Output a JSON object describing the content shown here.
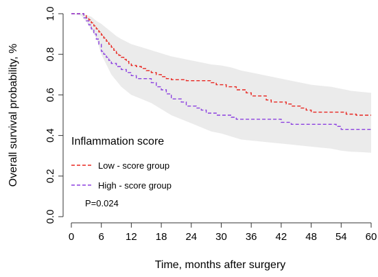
{
  "chart_data": {
    "type": "line",
    "title": "",
    "xlabel": "Time, months after surgery",
    "ylabel": "Overall survival probability, %",
    "xlim": [
      0,
      60
    ],
    "ylim": [
      0,
      1
    ],
    "x_ticks": [
      "0",
      "6",
      "12",
      "18",
      "24",
      "30",
      "36",
      "42",
      "48",
      "54",
      "60"
    ],
    "y_ticks": [
      "0.0",
      "0.2",
      "0.4",
      "0.6",
      "0.8",
      "1.0"
    ],
    "legend": {
      "title": "Inflammation score",
      "placement": "bottom-left"
    },
    "annotation": "P=0.024",
    "grid": false,
    "series": [
      {
        "name": "Low - score group",
        "color": "#e8251f",
        "dash": "dashed",
        "step": true,
        "points": [
          [
            0,
            1.0
          ],
          [
            2,
            1.0
          ],
          [
            2.5,
            0.99
          ],
          [
            3,
            0.98
          ],
          [
            3.5,
            0.97
          ],
          [
            4,
            0.955
          ],
          [
            4.5,
            0.94
          ],
          [
            5,
            0.925
          ],
          [
            5.5,
            0.91
          ],
          [
            6,
            0.895
          ],
          [
            6.5,
            0.88
          ],
          [
            7,
            0.865
          ],
          [
            7.5,
            0.85
          ],
          [
            8,
            0.835
          ],
          [
            8.5,
            0.82
          ],
          [
            9,
            0.805
          ],
          [
            9.5,
            0.795
          ],
          [
            10,
            0.785
          ],
          [
            10.5,
            0.775
          ],
          [
            11,
            0.765
          ],
          [
            11.5,
            0.755
          ],
          [
            12,
            0.745
          ],
          [
            13,
            0.74
          ],
          [
            14,
            0.73
          ],
          [
            15,
            0.72
          ],
          [
            16,
            0.71
          ],
          [
            17,
            0.7
          ],
          [
            18,
            0.69
          ],
          [
            19,
            0.68
          ],
          [
            20,
            0.675
          ],
          [
            23,
            0.67
          ],
          [
            28,
            0.66
          ],
          [
            29,
            0.65
          ],
          [
            31,
            0.64
          ],
          [
            33,
            0.625
          ],
          [
            35,
            0.61
          ],
          [
            36,
            0.595
          ],
          [
            39,
            0.575
          ],
          [
            40,
            0.565
          ],
          [
            43,
            0.555
          ],
          [
            44,
            0.545
          ],
          [
            46,
            0.535
          ],
          [
            47,
            0.525
          ],
          [
            48,
            0.515
          ],
          [
            55,
            0.505
          ],
          [
            57,
            0.5
          ],
          [
            60,
            0.5
          ]
        ]
      },
      {
        "name": "High - score group",
        "color": "#8b3fe0",
        "dash": "dashed",
        "step": true,
        "points": [
          [
            0,
            1.0
          ],
          [
            2,
            1.0
          ],
          [
            2.5,
            0.98
          ],
          [
            3,
            0.965
          ],
          [
            3.5,
            0.945
          ],
          [
            4,
            0.925
          ],
          [
            4.5,
            0.9
          ],
          [
            5,
            0.875
          ],
          [
            5.5,
            0.85
          ],
          [
            6,
            0.815
          ],
          [
            6.5,
            0.8
          ],
          [
            7,
            0.785
          ],
          [
            7.5,
            0.77
          ],
          [
            8,
            0.755
          ],
          [
            9,
            0.74
          ],
          [
            10,
            0.725
          ],
          [
            11,
            0.71
          ],
          [
            12,
            0.695
          ],
          [
            13,
            0.68
          ],
          [
            15,
            0.68
          ],
          [
            16,
            0.66
          ],
          [
            17,
            0.64
          ],
          [
            18,
            0.625
          ],
          [
            19,
            0.605
          ],
          [
            20,
            0.58
          ],
          [
            22,
            0.565
          ],
          [
            23,
            0.545
          ],
          [
            25,
            0.535
          ],
          [
            26,
            0.525
          ],
          [
            27,
            0.51
          ],
          [
            29,
            0.5
          ],
          [
            32,
            0.49
          ],
          [
            33,
            0.48
          ],
          [
            36,
            0.48
          ],
          [
            42,
            0.465
          ],
          [
            44,
            0.455
          ],
          [
            53,
            0.445
          ],
          [
            54,
            0.43
          ],
          [
            60,
            0.43
          ]
        ]
      }
    ],
    "confidence_band": {
      "color": "#ebebeb",
      "upper": [
        [
          0,
          1.0
        ],
        [
          2,
          1.0
        ],
        [
          3,
          0.995
        ],
        [
          4,
          0.985
        ],
        [
          5,
          0.965
        ],
        [
          6,
          0.95
        ],
        [
          7,
          0.93
        ],
        [
          8,
          0.91
        ],
        [
          9,
          0.89
        ],
        [
          10,
          0.875
        ],
        [
          12,
          0.85
        ],
        [
          14,
          0.835
        ],
        [
          16,
          0.82
        ],
        [
          18,
          0.805
        ],
        [
          20,
          0.79
        ],
        [
          22,
          0.78
        ],
        [
          24,
          0.77
        ],
        [
          26,
          0.76
        ],
        [
          28,
          0.75
        ],
        [
          30,
          0.745
        ],
        [
          32,
          0.735
        ],
        [
          34,
          0.72
        ],
        [
          36,
          0.71
        ],
        [
          38,
          0.7
        ],
        [
          40,
          0.69
        ],
        [
          42,
          0.68
        ],
        [
          44,
          0.67
        ],
        [
          46,
          0.66
        ],
        [
          48,
          0.65
        ],
        [
          50,
          0.645
        ],
        [
          52,
          0.64
        ],
        [
          54,
          0.63
        ],
        [
          56,
          0.62
        ],
        [
          58,
          0.615
        ],
        [
          60,
          0.61
        ]
      ],
      "lower": [
        [
          0,
          1.0
        ],
        [
          2,
          0.99
        ],
        [
          3,
          0.96
        ],
        [
          4,
          0.92
        ],
        [
          5,
          0.88
        ],
        [
          6,
          0.8
        ],
        [
          7,
          0.75
        ],
        [
          8,
          0.7
        ],
        [
          9,
          0.67
        ],
        [
          10,
          0.64
        ],
        [
          12,
          0.6
        ],
        [
          14,
          0.58
        ],
        [
          16,
          0.56
        ],
        [
          18,
          0.53
        ],
        [
          20,
          0.5
        ],
        [
          22,
          0.48
        ],
        [
          24,
          0.46
        ],
        [
          26,
          0.44
        ],
        [
          28,
          0.42
        ],
        [
          30,
          0.41
        ],
        [
          32,
          0.395
        ],
        [
          34,
          0.38
        ],
        [
          36,
          0.375
        ],
        [
          38,
          0.37
        ],
        [
          40,
          0.365
        ],
        [
          42,
          0.36
        ],
        [
          44,
          0.355
        ],
        [
          46,
          0.35
        ],
        [
          48,
          0.345
        ],
        [
          50,
          0.34
        ],
        [
          52,
          0.335
        ],
        [
          54,
          0.325
        ],
        [
          56,
          0.32
        ],
        [
          58,
          0.318
        ],
        [
          60,
          0.315
        ]
      ]
    }
  }
}
